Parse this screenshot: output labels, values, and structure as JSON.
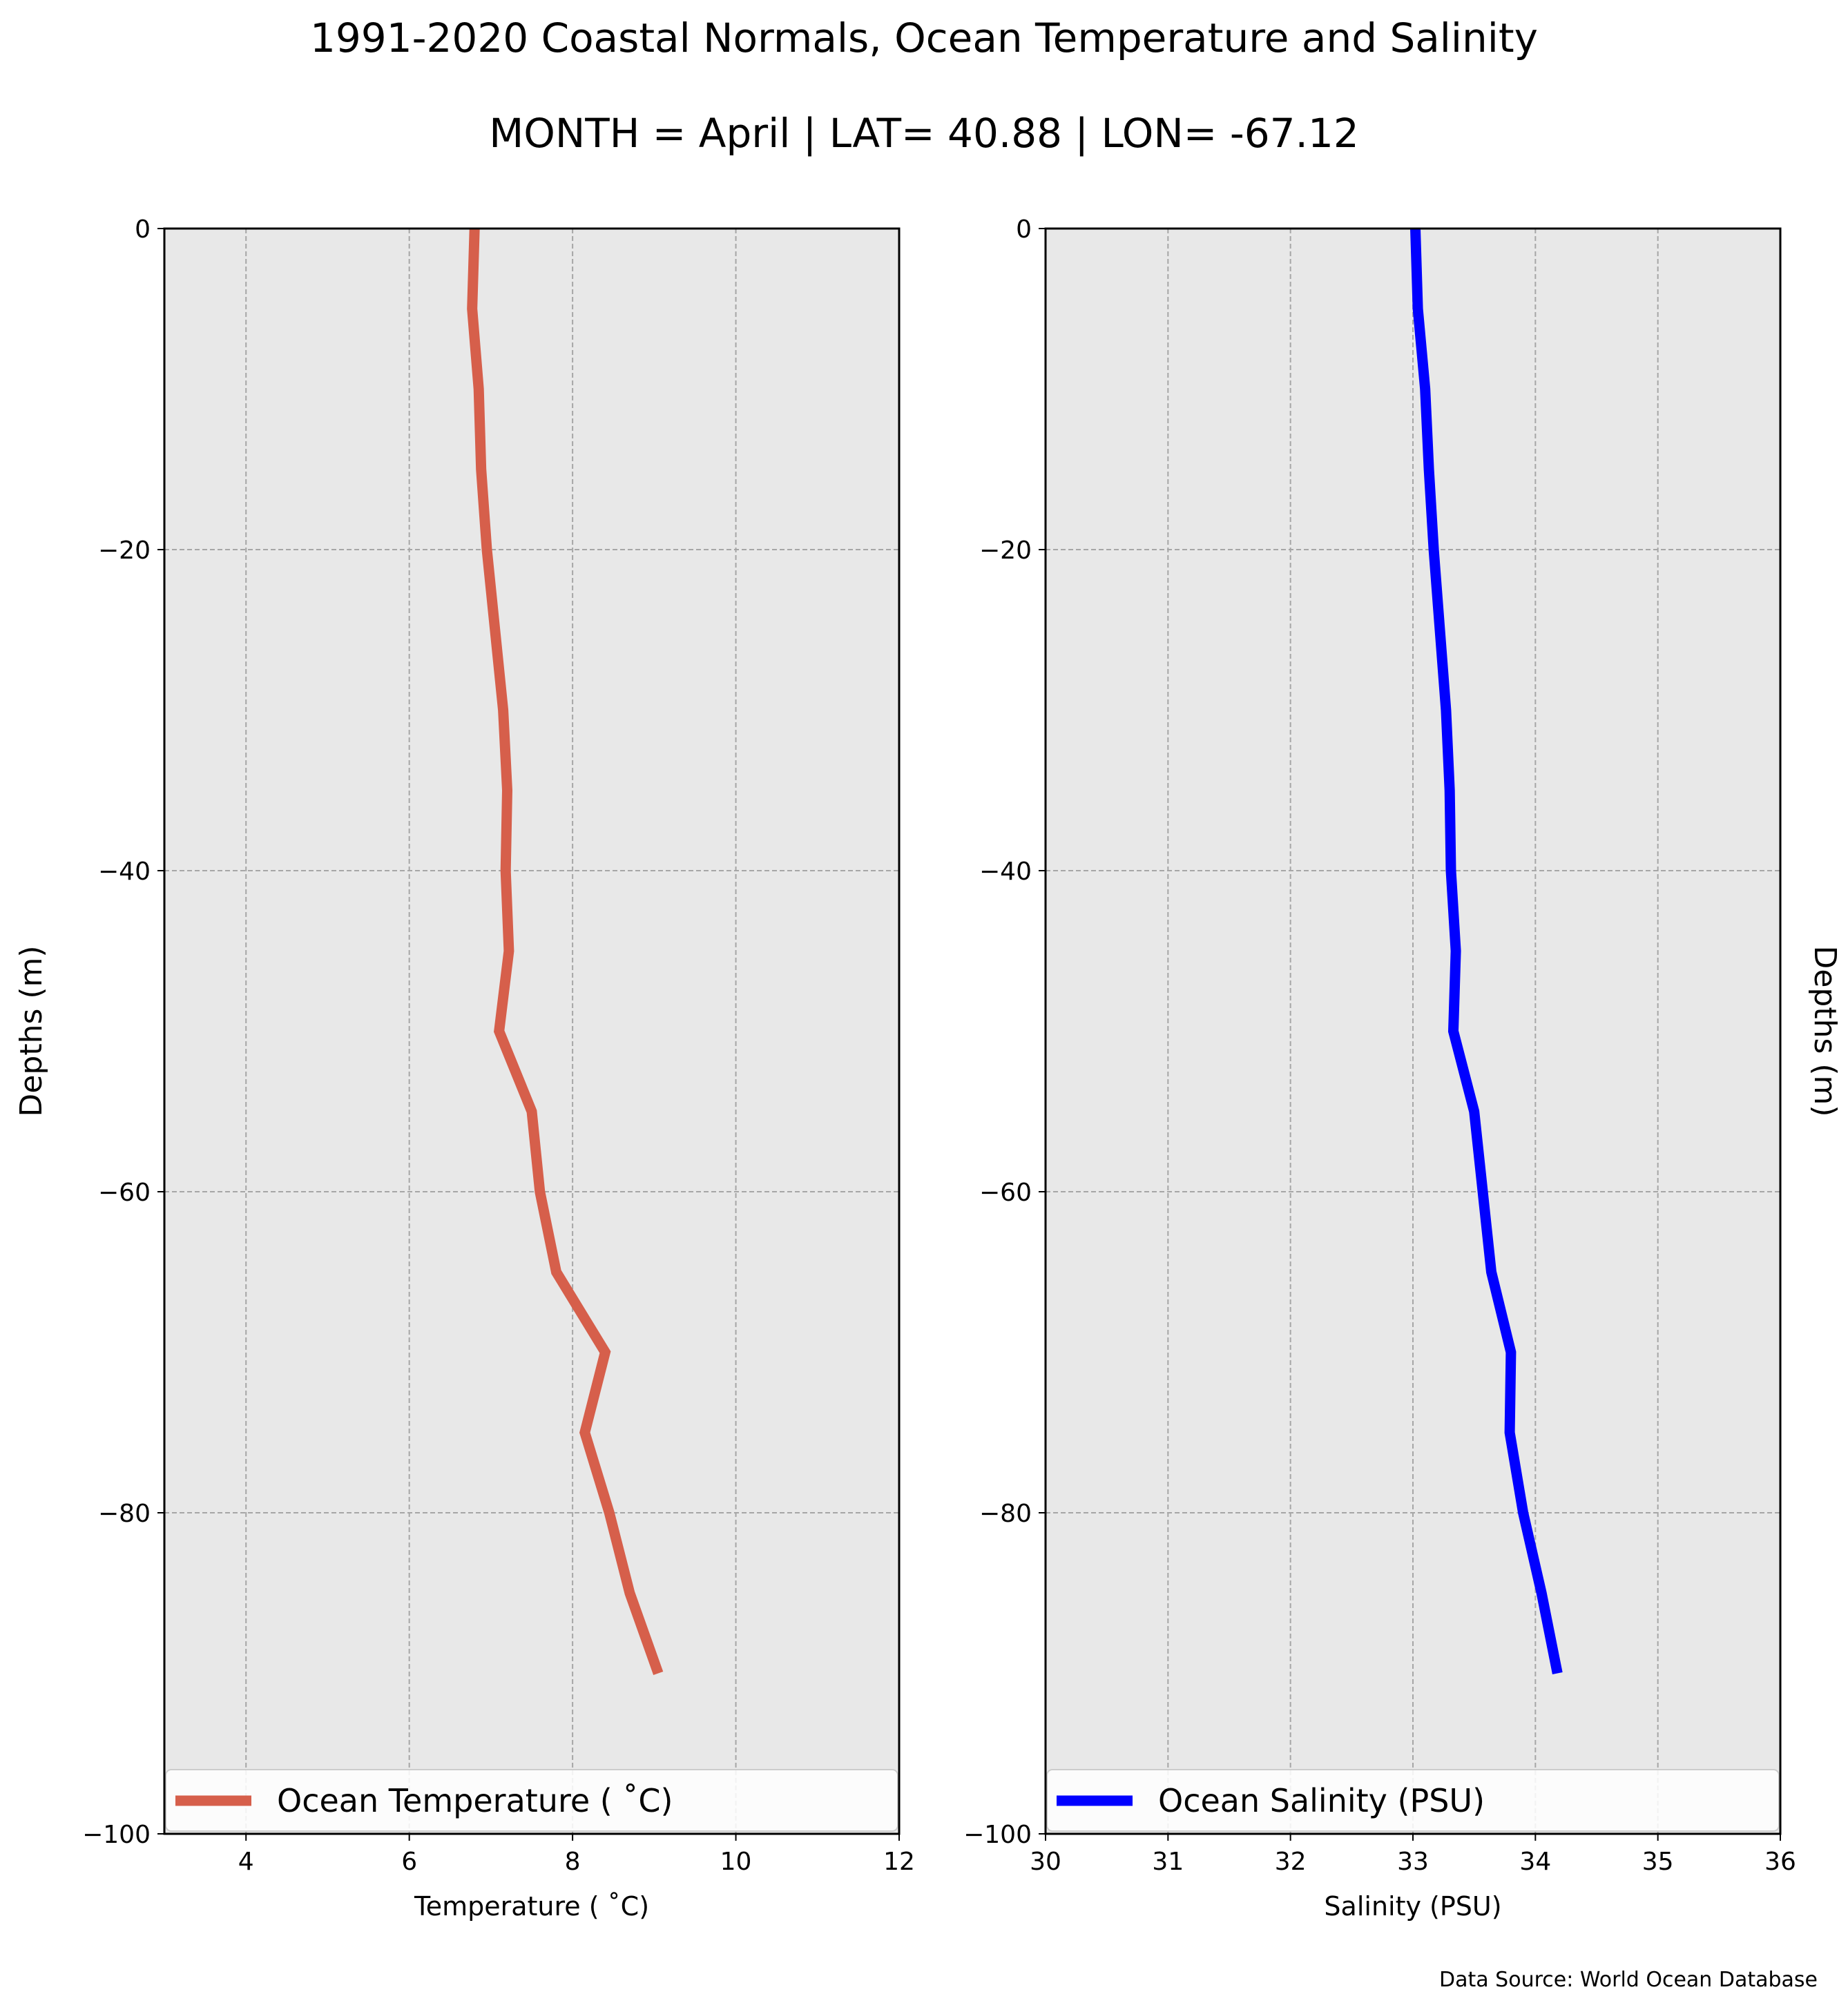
{
  "figure": {
    "title_line1": "1991-2020 Coastal Normals, Ocean Temperature and Salinity",
    "title_line2": "MONTH = April | LAT= 40.88 | LON= -67.12",
    "source": "Data Source: World Ocean Database",
    "colors": {
      "panel_bg": "#e8e8e8",
      "grid": "#a6a6a6",
      "temperature": "#d65f4b",
      "salinity": "#0000ff"
    }
  },
  "chart_data": [
    {
      "type": "line",
      "xlabel": "Temperature ($^\\circ$C)",
      "xlabel_display": "Temperature ( ˚C)",
      "ylabel": "Depths (m)",
      "ylabel_side": "left",
      "xlim": [
        3,
        12
      ],
      "ylim": [
        -100,
        0
      ],
      "xticks": [
        "4",
        "6",
        "8",
        "10",
        "12"
      ],
      "xtick_values": [
        4,
        6,
        8,
        10,
        12
      ],
      "yticks": [
        "0",
        "−20",
        "−40",
        "−60",
        "−80",
        "−100"
      ],
      "ytick_values": [
        0,
        -20,
        -40,
        -60,
        -80,
        -100
      ],
      "grid": true,
      "legend_position": "bottom",
      "series": [
        {
          "name": "Ocean Temperature ( ˚C)",
          "color": "#d65f4b",
          "x": [
            6.8,
            6.77,
            6.85,
            6.88,
            6.95,
            7.05,
            7.15,
            7.2,
            7.18,
            7.22,
            7.1,
            7.5,
            7.6,
            7.8,
            8.4,
            8.15,
            8.45,
            8.7,
            9.05
          ],
          "y": [
            0,
            -5,
            -10,
            -15,
            -20,
            -25,
            -30,
            -35,
            -40,
            -45,
            -50,
            -55,
            -60,
            -65,
            -70,
            -75,
            -80,
            -85,
            -90
          ]
        }
      ]
    },
    {
      "type": "line",
      "xlabel": "Salinity (PSU)",
      "ylabel": "Depths (m)",
      "ylabel_side": "right",
      "xlim": [
        30,
        36
      ],
      "ylim": [
        -100,
        0
      ],
      "xticks": [
        "30",
        "31",
        "32",
        "33",
        "34",
        "35",
        "36"
      ],
      "xtick_values": [
        30,
        31,
        32,
        33,
        34,
        35,
        36
      ],
      "yticks": [
        "0",
        "−20",
        "−40",
        "−60",
        "−80",
        "−100"
      ],
      "ytick_values": [
        0,
        -20,
        -40,
        -60,
        -80,
        -100
      ],
      "grid": true,
      "legend_position": "bottom",
      "series": [
        {
          "name": "Ocean Salinity (PSU)",
          "color": "#0000ff",
          "x": [
            33.02,
            33.04,
            33.1,
            33.13,
            33.17,
            33.22,
            33.27,
            33.3,
            33.31,
            33.35,
            33.33,
            33.5,
            33.57,
            33.64,
            33.8,
            33.79,
            33.9,
            34.05,
            34.18
          ],
          "y": [
            0,
            -5,
            -10,
            -15,
            -20,
            -25,
            -30,
            -35,
            -40,
            -45,
            -50,
            -55,
            -60,
            -65,
            -70,
            -75,
            -80,
            -85,
            -90
          ]
        }
      ]
    }
  ]
}
